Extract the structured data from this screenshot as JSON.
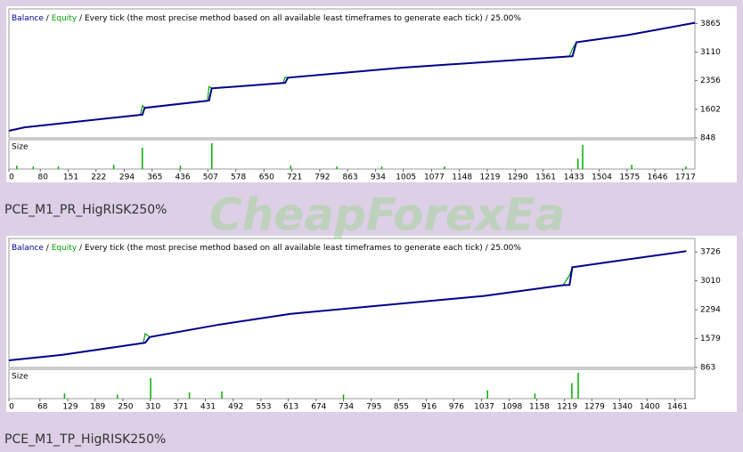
{
  "chart_data": [
    {
      "type": "line",
      "caption": "PCE_M1_PR_HigRISK250%",
      "legend": {
        "separator": "/",
        "model": "Every tick (the most precise method based on all available least timeframes to generate each tick)",
        "spread": "25.00%"
      },
      "size_label": "Size",
      "x": [
        0,
        40,
        150,
        335,
        340,
        346,
        506,
        510,
        517,
        699,
        704,
        711,
        1000,
        1428,
        1436,
        1446,
        1576,
        1748
      ],
      "series": [
        {
          "name": "Balance",
          "color": "#00008b",
          "values": [
            1035,
            1128,
            1250,
            1455,
            1460,
            1642,
            1829,
            1835,
            2156,
            2296,
            2300,
            2436,
            2700,
            2997,
            3000,
            3371,
            3558,
            3885
          ]
        },
        {
          "name": "Equity",
          "color": "#00a000",
          "values": [
            1035,
            1128,
            1250,
            1455,
            1700,
            1642,
            1829,
            2200,
            2156,
            2296,
            2450,
            2436,
            2700,
            2997,
            3200,
            3371,
            3558,
            3885
          ]
        }
      ],
      "size_x": [
        20,
        62,
        126,
        267,
        340,
        437,
        517,
        718,
        836,
        950,
        1110,
        1450,
        1462,
        1587,
        1725
      ],
      "size_values": [
        0.04,
        0.03,
        0.03,
        0.05,
        0.25,
        0.04,
        0.3,
        0.04,
        0.03,
        0.03,
        0.03,
        0.12,
        0.28,
        0.05,
        0.03
      ],
      "size_color": "#00b000",
      "xlim": [
        0,
        1748
      ],
      "xticks": [
        0,
        80,
        151,
        222,
        294,
        365,
        436,
        507,
        578,
        650,
        721,
        792,
        863,
        934,
        1005,
        1077,
        1148,
        1219,
        1290,
        1361,
        1433,
        1504,
        1575,
        1646,
        1717
      ],
      "ylim": [
        848,
        4250
      ],
      "yticks": [
        848,
        1602,
        2356,
        3110,
        3865
      ]
    },
    {
      "type": "line",
      "caption": "PCE_M1_TP_HigRISK250%",
      "legend": {
        "separator": "/",
        "model": "Every tick (the most precise method based on all available least timeframes to generate each tick)",
        "spread": "25.00%"
      },
      "size_label": "Size",
      "x": [
        0,
        116,
        295,
        299,
        309,
        463,
        618,
        1042,
        1216,
        1230,
        1236,
        1332,
        1486
      ],
      "series": [
        {
          "name": "Balance",
          "color": "#00008b",
          "values": [
            1040,
            1173,
            1470,
            1475,
            1617,
            1927,
            2193,
            2636,
            2903,
            2910,
            3346,
            3501,
            3745
          ]
        },
        {
          "name": "Equity",
          "color": "#00a000",
          "values": [
            1040,
            1173,
            1470,
            1700,
            1617,
            1927,
            2193,
            2636,
            2903,
            3150,
            3346,
            3501,
            3745
          ]
        }
      ],
      "size_x": [
        122,
        238,
        311,
        396,
        467,
        734,
        1050,
        1154,
        1235,
        1249
      ],
      "size_values": [
        0.05,
        0.04,
        0.2,
        0.06,
        0.07,
        0.04,
        0.08,
        0.05,
        0.15,
        0.25
      ],
      "size_color": "#00b000",
      "xlim": [
        0,
        1505
      ],
      "xticks": [
        0,
        68,
        129,
        189,
        250,
        310,
        371,
        431,
        492,
        553,
        613,
        674,
        734,
        795,
        855,
        916,
        976,
        1037,
        1098,
        1158,
        1219,
        1279,
        1340,
        1400,
        1461
      ],
      "ylim": [
        863,
        4060
      ],
      "yticks": [
        863,
        1579,
        2294,
        3010,
        3726
      ]
    }
  ],
  "watermark": "CheapForexEa"
}
